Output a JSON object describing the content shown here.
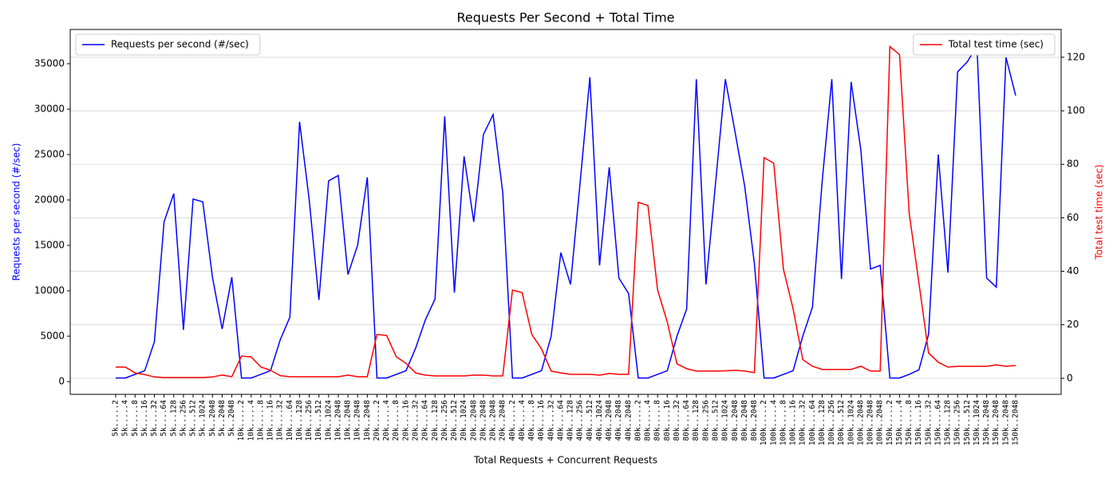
{
  "chart_data": {
    "type": "line",
    "title": "Requests Per Second + Total Time",
    "x_label": "Total Requests + Concurrent Requests",
    "y_label": "Requests per second (#/sec)",
    "y2_label": "Total test time (sec)",
    "categories": [
      "5k.....2",
      "5k.....4",
      "5k.....8",
      "5k....16",
      "5k....32",
      "5k....64",
      "5k...128",
      "5k...256",
      "5k...512",
      "5k..1024",
      "5k..2048",
      "5k..2048",
      "5k..2048",
      "10k.....2",
      "10k.....4",
      "10k.....8",
      "10k....16",
      "10k....32",
      "10k....64",
      "10k...128",
      "10k...256",
      "10k...512",
      "10k..1024",
      "10k..2048",
      "10k..2048",
      "10k..2048",
      "10k..2048",
      "20k.....2",
      "20k.....4",
      "20k.....8",
      "20k....16",
      "20k....32",
      "20k....64",
      "20k...128",
      "20k...256",
      "20k...512",
      "20k..1024",
      "20k..2048",
      "20k..2048",
      "20k..2048",
      "20k..2048",
      "40k.....2",
      "40k.....4",
      "40k.....8",
      "40k....16",
      "40k....32",
      "40k....64",
      "40k...128",
      "40k...256",
      "40k...512",
      "40k..1024",
      "40k..2048",
      "40k..2048",
      "40k..2048",
      "80k.....2",
      "80k.....4",
      "80k.....8",
      "80k....16",
      "80k....32",
      "80k....64",
      "80k...128",
      "80k...256",
      "80k...512",
      "80k..1024",
      "80k..2048",
      "80k..2048",
      "80k..2048",
      "100k.....2",
      "100k.....4",
      "100k.....8",
      "100k....16",
      "100k....32",
      "100k....64",
      "100k...128",
      "100k...256",
      "100k...512",
      "100k..1024",
      "100k..2048",
      "100k..2048",
      "100k..2048",
      "150k.....2",
      "150k.....4",
      "150k.....8",
      "150k....16",
      "150k....32",
      "150k....64",
      "150k...128",
      "150k...256",
      "150k...512",
      "150k..1024",
      "150k..2048",
      "150k..2048",
      "150k..2048",
      "150k..2048"
    ],
    "series": [
      {
        "name": "Requests per second (#/sec)",
        "color": "#0000ff",
        "axis": "y",
        "legend": "upper left",
        "values": [
          400,
          400,
          800,
          1200,
          4400,
          17600,
          20700,
          5700,
          20100,
          19800,
          11500,
          5800,
          11500,
          400,
          400,
          800,
          1200,
          4600,
          7100,
          28600,
          20000,
          9000,
          22100,
          22700,
          11800,
          15000,
          22500,
          400,
          400,
          800,
          1200,
          3700,
          6800,
          9100,
          29200,
          9800,
          24800,
          17600,
          27200,
          29400,
          20800,
          400,
          400,
          800,
          1200,
          5000,
          14200,
          10700,
          22000,
          33500,
          12800,
          23600,
          11400,
          9700,
          400,
          400,
          800,
          1200,
          5000,
          8000,
          33300,
          10700,
          22000,
          33300,
          27500,
          21500,
          13000,
          400,
          400,
          800,
          1200,
          5000,
          8200,
          22000,
          33300,
          11300,
          33000,
          25500,
          12400,
          12800,
          400,
          400,
          800,
          1300,
          5200,
          25000,
          12000,
          34100,
          35200,
          37000,
          11400,
          10400,
          35700,
          31500
        ]
      },
      {
        "name": "Total test time (sec)",
        "color": "#ff0000",
        "axis": "y2",
        "legend": "upper right",
        "values": [
          4.2,
          4.2,
          2,
          1.4,
          0.5,
          0.3,
          0.3,
          0.3,
          0.3,
          0.3,
          0.5,
          1.2,
          0.6,
          8.3,
          8,
          4.2,
          3,
          1,
          0.6,
          0.6,
          0.6,
          0.6,
          0.6,
          0.6,
          1.2,
          0.6,
          0.6,
          16.4,
          16,
          8,
          5.6,
          2,
          1.2,
          0.9,
          0.9,
          0.9,
          0.9,
          1.2,
          1.2,
          0.9,
          0.9,
          33,
          32,
          16.4,
          11,
          2.7,
          2,
          1.5,
          1.5,
          1.5,
          1.2,
          1.8,
          1.5,
          1.5,
          65.8,
          64.6,
          33,
          21,
          5.4,
          3.6,
          2.7,
          2.7,
          2.7,
          2.8,
          3,
          2.7,
          2.1,
          82.5,
          80.4,
          40.8,
          26,
          7,
          4.5,
          3.3,
          3.3,
          3.3,
          3.3,
          4.5,
          2.7,
          2.7,
          124,
          121,
          61.6,
          35.7,
          9.5,
          6,
          4.2,
          4.5,
          4.5,
          4.5,
          4.5,
          5,
          4.5,
          4.8
        ]
      }
    ],
    "ylim": [
      -1400,
      38770
    ],
    "yticks": [
      0,
      5000,
      10000,
      15000,
      20000,
      25000,
      30000,
      35000
    ],
    "y2lim": [
      -6,
      130.4
    ],
    "y2ticks": [
      0,
      20,
      40,
      60,
      80,
      100,
      120
    ],
    "grid": "y2"
  }
}
